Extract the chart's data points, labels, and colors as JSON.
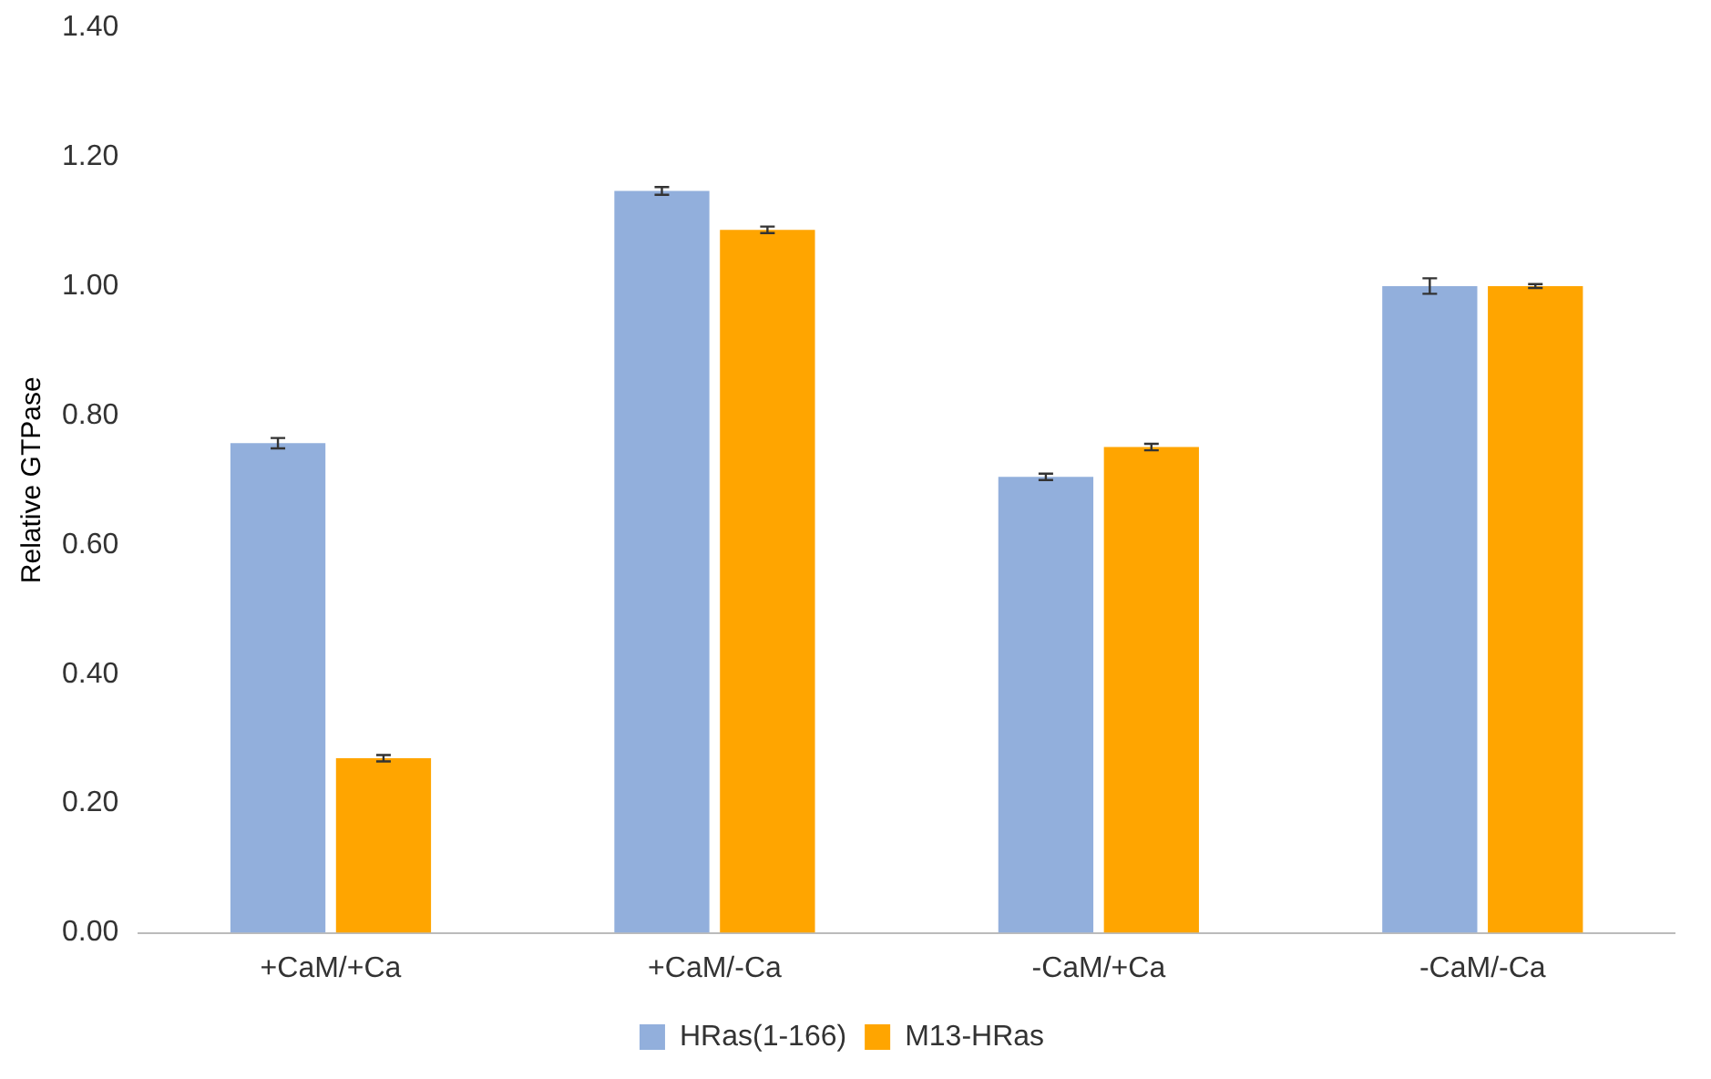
{
  "chart_data": {
    "type": "bar",
    "ylabel": "Relative GTPase",
    "categories": [
      "+CaM/+Ca",
      "+CaM/-Ca",
      "-CaM/+Ca",
      "-CaM/-Ca"
    ],
    "series": [
      {
        "name": "HRas(1-166)",
        "color": "#92afdc",
        "values": [
          0.757,
          1.147,
          0.705,
          1.0
        ],
        "errors": [
          0.008,
          0.006,
          0.005,
          0.012
        ]
      },
      {
        "name": "M13-HRas",
        "color": "#ffa500",
        "values": [
          0.27,
          1.087,
          0.751,
          1.0
        ],
        "errors": [
          0.005,
          0.005,
          0.005,
          0.003
        ]
      }
    ],
    "ylim": [
      0,
      1.4
    ],
    "yticks": [
      {
        "value": 0,
        "label": "0.00"
      },
      {
        "value": 0.2,
        "label": "0.20"
      },
      {
        "value": 0.4,
        "label": "0.40"
      },
      {
        "value": 0.6,
        "label": "0.60"
      },
      {
        "value": 0.8,
        "label": "0.80"
      },
      {
        "value": 1.0,
        "label": "1.00"
      },
      {
        "value": 1.2,
        "label": "1.20"
      },
      {
        "value": 1.4,
        "label": "1.40"
      }
    ],
    "grid": false,
    "legend": "bottom"
  }
}
